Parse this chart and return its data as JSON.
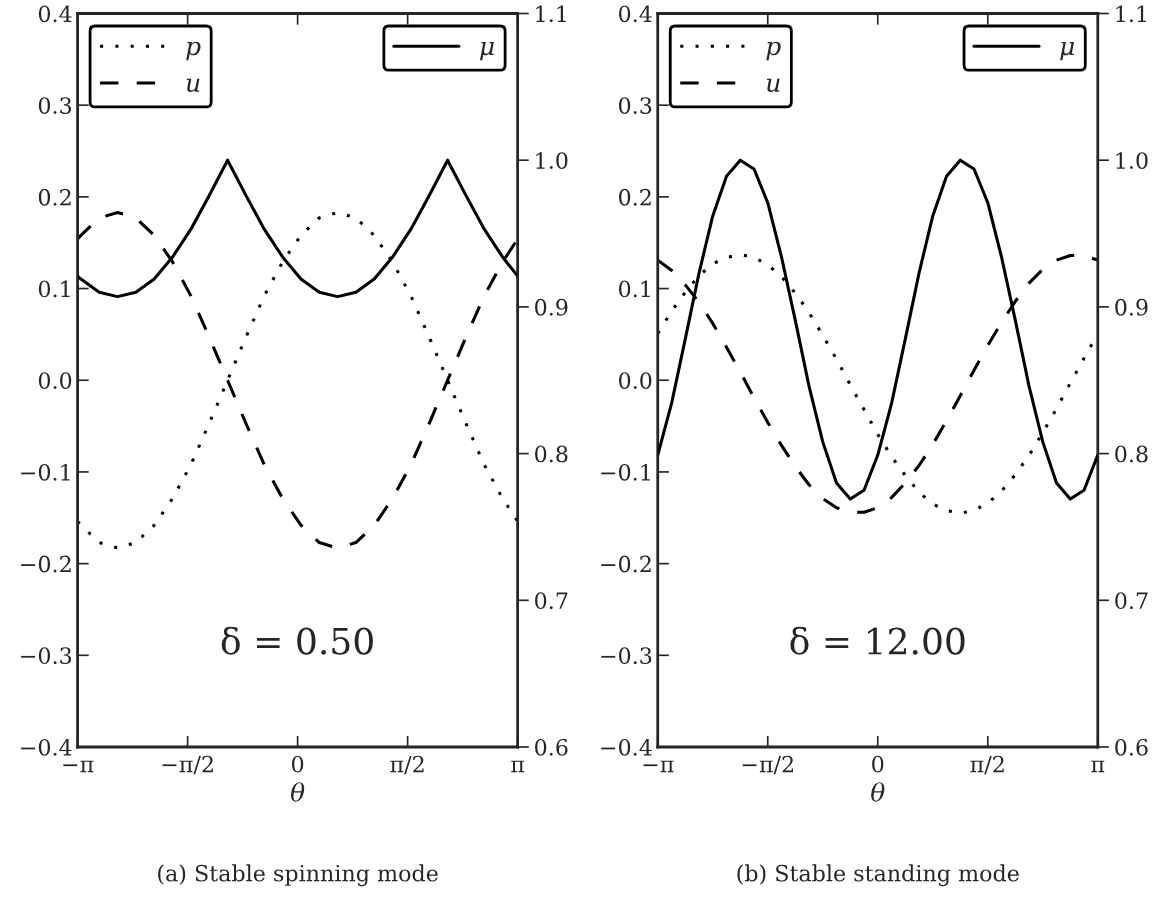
{
  "chart_data": [
    {
      "type": "line",
      "xlabel": "θ",
      "xlim": [
        -3.1416,
        3.1416
      ],
      "xticks": [
        {
          "value": -3.1416,
          "label": "−π"
        },
        {
          "value": -1.5708,
          "label": "−π/2"
        },
        {
          "value": 0,
          "label": "0"
        },
        {
          "value": 1.5708,
          "label": "π/2"
        },
        {
          "value": 3.1416,
          "label": "π"
        }
      ],
      "ylim": [
        -0.4,
        0.4
      ],
      "yticks": [
        {
          "value": -0.4,
          "label": "−0.4"
        },
        {
          "value": -0.3,
          "label": "−0.3"
        },
        {
          "value": -0.2,
          "label": "−0.2"
        },
        {
          "value": -0.1,
          "label": "−0.1"
        },
        {
          "value": 0,
          "label": "0.0"
        },
        0.1,
        0.2,
        0.3,
        0.4
      ],
      "y2lim": [
        0.6,
        1.1
      ],
      "y2ticks": [
        0.6,
        0.7,
        0.8,
        0.9,
        {
          "value": 1.0,
          "label": "1.0"
        },
        1.1
      ],
      "legend": "top left",
      "grid": false,
      "annotations": [
        "δ = 0.50",
        "(a) Stable spinning mode"
      ],
      "x": [
        -3.1416,
        -3.0944,
        -2.8326,
        -2.5708,
        -2.309,
        -2.0472,
        -1.7854,
        -1.5236,
        -1.2618,
        -1.0,
        -0.7382,
        -0.4764,
        -0.2146,
        0.0472,
        0.309,
        0.5708,
        0.8326,
        1.0944,
        1.3562,
        1.618,
        1.8798,
        2.1416,
        2.4034,
        2.6652,
        2.927,
        3.1416
      ],
      "series": [
        {
          "name": "p",
          "color": "#000000",
          "line_style": "dotted",
          "values": [
            -0.154,
            -0.158,
            -0.177,
            -0.183,
            -0.177,
            -0.158,
            -0.129,
            -0.092,
            -0.047,
            0,
            0.047,
            0.092,
            0.129,
            0.158,
            0.177,
            0.183,
            0.177,
            0.158,
            0.129,
            0.092,
            0.047,
            0,
            -0.047,
            -0.092,
            -0.129,
            -0.154
          ]
        },
        {
          "name": "u",
          "color": "#000000",
          "line_style": "dashed",
          "values": [
            0.154,
            0.158,
            0.177,
            0.183,
            0.177,
            0.158,
            0.129,
            0.092,
            0.047,
            0,
            -0.047,
            -0.092,
            -0.129,
            -0.158,
            -0.177,
            -0.183,
            -0.177,
            -0.158,
            -0.129,
            -0.092,
            -0.047,
            0,
            0.047,
            0.092,
            0.129,
            0.154
          ]
        },
        {
          "name": "μ",
          "color": "#000000",
          "line_style": "solid",
          "axis": "y2",
          "values": [
            0.921,
            0.919,
            0.91,
            0.907,
            0.91,
            0.919,
            0.934,
            0.953,
            0.976,
            1.0,
            0.976,
            0.953,
            0.934,
            0.919,
            0.91,
            0.907,
            0.91,
            0.919,
            0.934,
            0.953,
            0.976,
            1.0,
            0.976,
            0.953,
            0.934,
            0.921
          ]
        }
      ]
    },
    {
      "type": "line",
      "xlabel": "θ",
      "xlim": [
        -3.1416,
        3.1416
      ],
      "xticks": [
        {
          "value": -3.1416,
          "label": "−π"
        },
        {
          "value": -1.5708,
          "label": "−π/2"
        },
        {
          "value": 0,
          "label": "0"
        },
        {
          "value": 1.5708,
          "label": "π/2"
        },
        {
          "value": 3.1416,
          "label": "π"
        }
      ],
      "ylim": [
        -0.4,
        0.4
      ],
      "yticks": [
        {
          "value": -0.4,
          "label": "−0.4"
        },
        {
          "value": -0.3,
          "label": "−0.3"
        },
        {
          "value": -0.2,
          "label": "−0.2"
        },
        {
          "value": -0.1,
          "label": "−0.1"
        },
        {
          "value": 0,
          "label": "0.0"
        },
        0.1,
        0.2,
        0.3,
        0.4
      ],
      "y2lim": [
        0.6,
        1.1
      ],
      "y2ticks": [
        0.6,
        0.7,
        0.8,
        0.9,
        {
          "value": 1.0,
          "label": "1.0"
        },
        1.1
      ],
      "legend": "top left",
      "grid": false,
      "annotations": [
        "δ = 12.00",
        "(b) Stable standing mode"
      ],
      "x": [
        -3.1416,
        -2.9452,
        -2.7489,
        -2.5525,
        -2.3562,
        -2.1598,
        -1.9635,
        -1.7671,
        -1.5708,
        -1.3744,
        -1.1781,
        -0.9817,
        -0.7854,
        -0.589,
        -0.3927,
        -0.1963,
        0,
        0.1963,
        0.3927,
        0.589,
        0.7854,
        0.9817,
        1.1781,
        1.3744,
        1.5708,
        1.7671,
        1.9635,
        2.1598,
        2.3562,
        2.5525,
        2.7489,
        2.9452,
        3.1416
      ],
      "series": [
        {
          "name": "p",
          "color": "#000000",
          "line_style": "dotted",
          "values": [
            0.051,
            0.075,
            0.096,
            0.114,
            0.127,
            0.134,
            0.137,
            0.134,
            0.126,
            0.113,
            0.095,
            0.074,
            0.049,
            0.023,
            -0.005,
            -0.032,
            -0.059,
            -0.083,
            -0.104,
            -0.122,
            -0.135,
            -0.142,
            -0.145,
            -0.142,
            -0.134,
            -0.121,
            -0.103,
            -0.082,
            -0.057,
            -0.031,
            -0.003,
            0.024,
            0.051
          ]
        },
        {
          "name": "u",
          "color": "#000000",
          "line_style": "dashed",
          "values": [
            0.131,
            0.12,
            0.104,
            0.085,
            0.062,
            0.036,
            0.009,
            -0.019,
            -0.046,
            -0.071,
            -0.094,
            -0.114,
            -0.129,
            -0.139,
            -0.144,
            -0.144,
            -0.139,
            -0.128,
            -0.112,
            -0.093,
            -0.07,
            -0.044,
            -0.017,
            0.011,
            0.038,
            0.063,
            0.086,
            0.106,
            0.121,
            0.131,
            0.136,
            0.136,
            0.131
          ]
        },
        {
          "name": "μ",
          "color": "#000000",
          "line_style": "solid",
          "axis": "y2",
          "values": [
            0.799,
            0.834,
            0.878,
            0.923,
            0.962,
            0.989,
            1.0,
            0.994,
            0.971,
            0.934,
            0.891,
            0.846,
            0.808,
            0.78,
            0.769,
            0.775,
            0.799,
            0.834,
            0.878,
            0.923,
            0.962,
            0.989,
            1.0,
            0.994,
            0.971,
            0.934,
            0.891,
            0.846,
            0.808,
            0.78,
            0.769,
            0.775,
            0.799
          ]
        }
      ]
    }
  ]
}
